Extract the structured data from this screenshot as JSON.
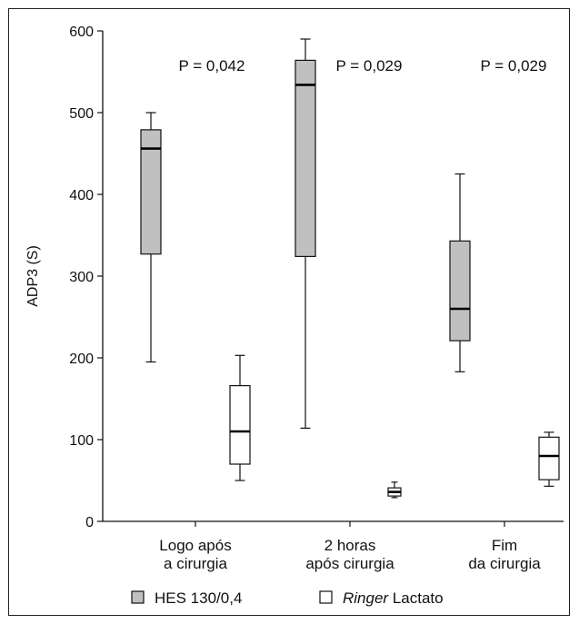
{
  "chart_data": {
    "type": "boxplot",
    "ylabel": "ADP3 (S)",
    "ylim": [
      0,
      600
    ],
    "yticks": [
      0,
      100,
      200,
      300,
      400,
      500,
      600
    ],
    "grid": false,
    "legend_position": "bottom",
    "categories": [
      [
        "Logo após",
        "a cirurgia"
      ],
      [
        "2 horas",
        "após cirurgia"
      ],
      [
        "Fim",
        "da cirurgia"
      ]
    ],
    "p_values": [
      "P = 0,042",
      "P = 0,029",
      "P = 0,029"
    ],
    "series": [
      {
        "name": "HES 130/0,4",
        "italic_part": "",
        "color": "#c0c0c0",
        "boxes": [
          {
            "min": 195,
            "q1": 327,
            "median": 456,
            "q3": 479,
            "max": 500
          },
          {
            "min": 114,
            "q1": 324,
            "median": 534,
            "q3": 564,
            "max": 590
          },
          {
            "min": 183,
            "q1": 221,
            "median": 260,
            "q3": 343,
            "max": 425
          }
        ]
      },
      {
        "name": "Ringer Lactato",
        "italic_part": "Ringer",
        "plain_part": " Lactato",
        "color": "#ffffff",
        "boxes": [
          {
            "min": 50,
            "q1": 70,
            "median": 110,
            "q3": 166,
            "max": 203
          },
          {
            "min": 29,
            "q1": 31,
            "median": 36,
            "q3": 41,
            "max": 48
          },
          {
            "min": 43,
            "q1": 51,
            "median": 80,
            "q3": 103,
            "max": 109
          }
        ]
      }
    ]
  }
}
